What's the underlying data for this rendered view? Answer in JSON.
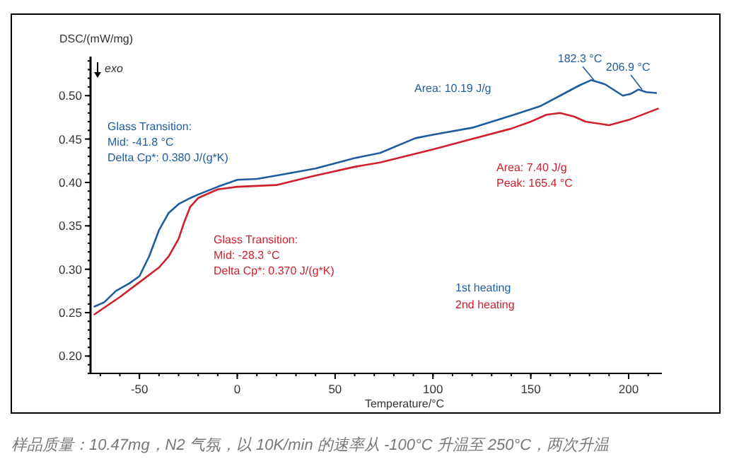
{
  "chart_data": {
    "type": "line",
    "xlabel": "Temperature/°C",
    "ylabel": "DSC/(mW/mg)",
    "xlim": [
      -75,
      217
    ],
    "ylim": [
      0.18,
      0.545
    ],
    "xticks": [
      -50,
      0,
      50,
      100,
      150,
      200
    ],
    "yticks": [
      {
        "value": 0.2,
        "label": "0.20"
      },
      {
        "value": 0.25,
        "label": "0.25"
      },
      {
        "value": 0.3,
        "label": "0.30"
      },
      {
        "value": 0.35,
        "label": "0.35"
      },
      {
        "value": 0.4,
        "label": "0.40"
      },
      {
        "value": 0.45,
        "label": "0.45"
      },
      {
        "value": 0.5,
        "label": "0.50"
      }
    ],
    "legend": "bottom right",
    "series": [
      {
        "name": "1st heating",
        "color": "#1f5c9e",
        "x": [
          -73,
          -68,
          -62,
          -55,
          -50,
          -45,
          -40,
          -35,
          -30,
          -25,
          -20,
          -10,
          0,
          10,
          20,
          40,
          60,
          73,
          91,
          100,
          120,
          140,
          155,
          165,
          175,
          181,
          188,
          197,
          201,
          205,
          209,
          214
        ],
        "values": [
          0.257,
          0.262,
          0.275,
          0.284,
          0.292,
          0.315,
          0.345,
          0.365,
          0.375,
          0.381,
          0.386,
          0.395,
          0.403,
          0.404,
          0.408,
          0.416,
          0.428,
          0.434,
          0.451,
          0.455,
          0.463,
          0.477,
          0.488,
          0.5,
          0.512,
          0.518,
          0.513,
          0.5,
          0.502,
          0.507,
          0.504,
          0.503
        ]
      },
      {
        "name": "2nd heating",
        "color": "#d0202e",
        "x": [
          -73,
          -60,
          -50,
          -40,
          -35,
          -30,
          -27,
          -24,
          -20,
          -10,
          0,
          10,
          20,
          40,
          60,
          73,
          100,
          120,
          140,
          150,
          158,
          165,
          172,
          178,
          190,
          200,
          215
        ],
        "values": [
          0.248,
          0.268,
          0.285,
          0.302,
          0.315,
          0.335,
          0.355,
          0.372,
          0.382,
          0.392,
          0.395,
          0.396,
          0.397,
          0.408,
          0.418,
          0.423,
          0.438,
          0.45,
          0.462,
          0.47,
          0.478,
          0.48,
          0.476,
          0.47,
          0.466,
          0.472,
          0.485
        ]
      }
    ],
    "annotations": [
      "Glass Transition:",
      "Mid: -41.8 °C",
      "Delta Cp*: 0.380 J/(g*K)",
      "Glass Transition:",
      "Mid: -28.3 °C",
      "Delta Cp*: 0.370 J/(g*K)",
      "Area: 10.19 J/g",
      "Area: 7.40 J/g",
      "Peak: 165.4 °C",
      {
        "text": "182.3 °C",
        "x": 182.3,
        "y": 0.518
      },
      {
        "text": "206.9 °C",
        "x": 206.9,
        "y": 0.507
      },
      "exo",
      "样品质量：10.47mg，N2 气氛，以 10K/min 的速率从 -100°C 升温至 250°C，两次升温"
    ]
  }
}
